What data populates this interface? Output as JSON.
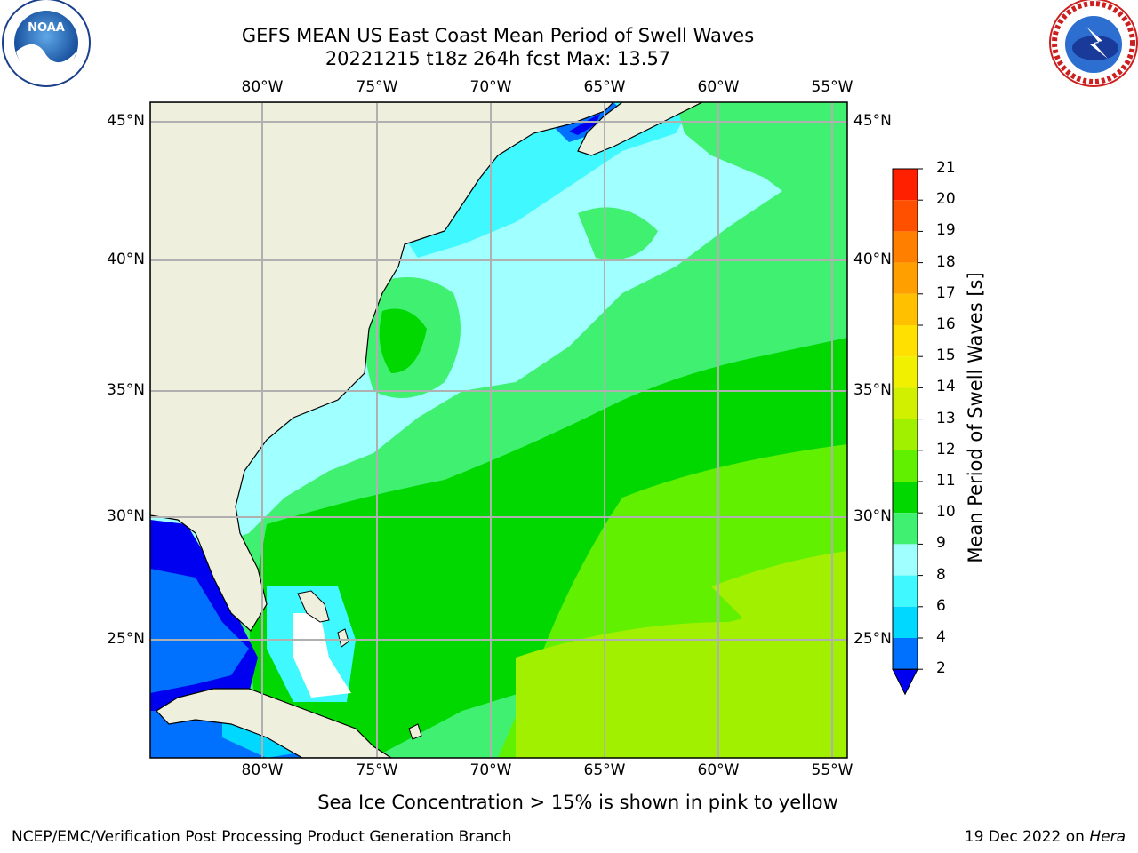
{
  "title_line1": "GEFS MEAN US East Coast Mean Period of Swell Waves",
  "title_line2": "20221215 t18z 264h fcst   Max: 13.57",
  "logos": {
    "left": "NOAA",
    "right": "NATIONAL WEATHER SERVICE"
  },
  "lon_labels": [
    "80°W",
    "75°W",
    "70°W",
    "65°W",
    "60°W",
    "55°W"
  ],
  "lat_labels": [
    "45°N",
    "40°N",
    "35°N",
    "30°N",
    "25°N"
  ],
  "colorbar": {
    "label": "Mean Period of Swell Waves [s]",
    "ticks": [
      "2",
      "4",
      "6",
      "8",
      "9",
      "10",
      "11",
      "12",
      "13",
      "14",
      "15",
      "16",
      "17",
      "18",
      "19",
      "20",
      "21"
    ],
    "colors": [
      "#0000f0",
      "#0070ff",
      "#00d8ff",
      "#40f8ff",
      "#a0ffff",
      "#40f070",
      "#00d800",
      "#60f000",
      "#a0f000",
      "#d0f000",
      "#f0f000",
      "#ffe000",
      "#ffc000",
      "#ffa000",
      "#ff8000",
      "#ff5000",
      "#ff2000",
      "#ff0000"
    ]
  },
  "footnote": "Sea Ice Concentration > 15% is shown in pink to yellow",
  "credit": "NCEP/EMC/Verification Post Processing Product Generation Branch",
  "date_text": "19 Dec 2022 on ",
  "date_machine": "Hera",
  "colors": {
    "land": "#efefdd",
    "grid": "#b0b0b0"
  }
}
